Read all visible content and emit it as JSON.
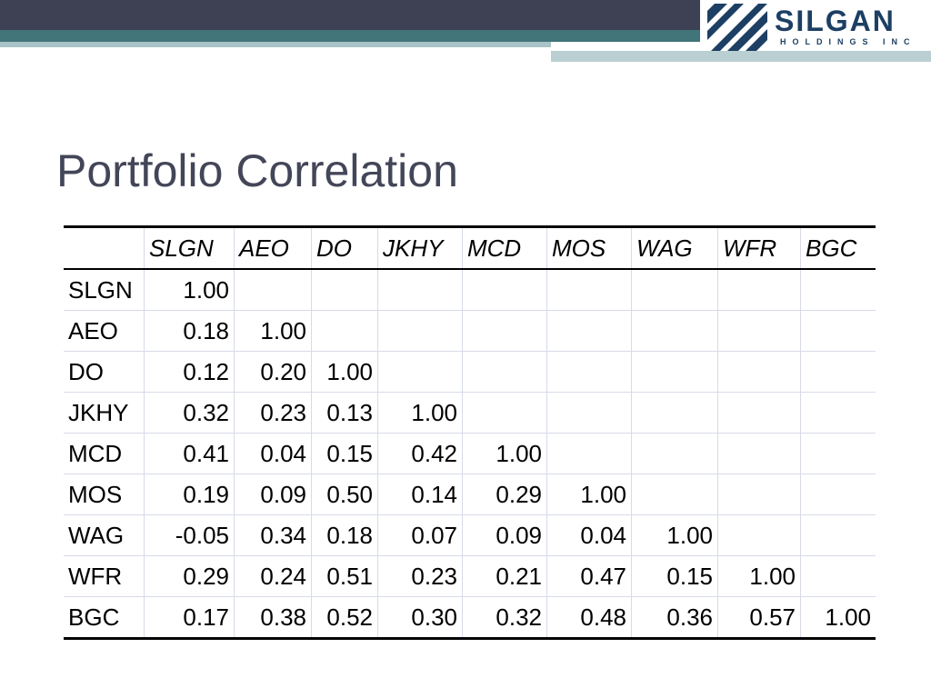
{
  "logo": {
    "name": "SILGAN",
    "subtitle": "HOLDINGS INC"
  },
  "slide": {
    "title": "Portfolio Correlation"
  },
  "table": {
    "columns": [
      "SLGN",
      "AEO",
      "DO",
      "JKHY",
      "MCD",
      "MOS",
      "WAG",
      "WFR",
      "BGC"
    ],
    "rows": [
      {
        "label": "SLGN",
        "values": [
          "1.00",
          "",
          "",
          "",
          "",
          "",
          "",
          "",
          ""
        ]
      },
      {
        "label": "AEO",
        "values": [
          "0.18",
          "1.00",
          "",
          "",
          "",
          "",
          "",
          "",
          ""
        ]
      },
      {
        "label": "DO",
        "values": [
          "0.12",
          "0.20",
          "1.00",
          "",
          "",
          "",
          "",
          "",
          ""
        ]
      },
      {
        "label": "JKHY",
        "values": [
          "0.32",
          "0.23",
          "0.13",
          "1.00",
          "",
          "",
          "",
          "",
          ""
        ]
      },
      {
        "label": "MCD",
        "values": [
          "0.41",
          "0.04",
          "0.15",
          "0.42",
          "1.00",
          "",
          "",
          "",
          ""
        ]
      },
      {
        "label": "MOS",
        "values": [
          "0.19",
          "0.09",
          "0.50",
          "0.14",
          "0.29",
          "1.00",
          "",
          "",
          ""
        ]
      },
      {
        "label": "WAG",
        "values": [
          "-0.05",
          "0.34",
          "0.18",
          "0.07",
          "0.09",
          "0.04",
          "1.00",
          "",
          ""
        ]
      },
      {
        "label": "WFR",
        "values": [
          "0.29",
          "0.24",
          "0.51",
          "0.23",
          "0.21",
          "0.47",
          "0.15",
          "1.00",
          ""
        ]
      },
      {
        "label": "BGC",
        "values": [
          "0.17",
          "0.38",
          "0.52",
          "0.30",
          "0.32",
          "0.48",
          "0.36",
          "0.57",
          "1.00"
        ]
      }
    ]
  },
  "colors": {
    "header_dark": "#3e4154",
    "header_teal": "#41757a",
    "header_light": "#a9c3c6",
    "logo_blue": "#1d3f63",
    "title_text": "#434658",
    "grid_line": "#d7dbe8"
  }
}
